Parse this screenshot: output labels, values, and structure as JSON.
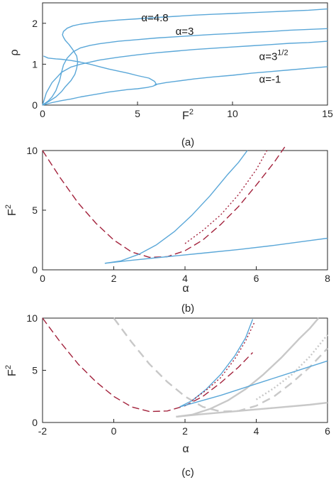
{
  "colors": {
    "blue": "#5aa7d8",
    "red": "#a3223c",
    "gray": "#c8c8c8",
    "axis": "#262626"
  },
  "chart_data": [
    {
      "panel": "(a)",
      "type": "line",
      "xlabel": "F",
      "xlabel_sup": "2",
      "ylabel": "ρ",
      "xlim": [
        0,
        15
      ],
      "ylim": [
        0,
        2.5
      ],
      "xticks": [
        0,
        5,
        10,
        15
      ],
      "yticks": [
        0,
        1,
        2
      ],
      "annotations": [
        {
          "prefix": "α",
          "text": "=4.8",
          "sup": "",
          "x": 5.2,
          "y": 2.05
        },
        {
          "prefix": "α",
          "text": "=3",
          "sup": "",
          "x": 7.0,
          "y": 1.72
        },
        {
          "prefix": "α",
          "text": "=3",
          "sup": "1/2",
          "x": 11.4,
          "y": 1.1
        },
        {
          "prefix": "α",
          "text": "=-1",
          "sup": "",
          "x": 11.4,
          "y": 0.55
        }
      ],
      "series": [
        {
          "style": "solid",
          "color": "blue",
          "x": [
            0,
            0.3,
            0.7,
            1.0,
            1.2,
            1.5,
            1.7,
            1.8,
            1.85,
            1.8,
            1.6,
            1.4,
            1.2,
            1.1,
            1.05,
            1.1,
            1.3,
            1.6,
            2.0,
            2.5,
            3.0,
            3.5,
            4.0,
            5,
            6,
            7,
            8,
            9,
            10,
            11,
            12,
            13,
            14,
            15
          ],
          "y": [
            0,
            0.08,
            0.2,
            0.33,
            0.45,
            0.6,
            0.75,
            0.9,
            1.05,
            1.2,
            1.35,
            1.48,
            1.58,
            1.66,
            1.72,
            1.8,
            1.88,
            1.94,
            1.98,
            2.01,
            2.04,
            2.06,
            2.08,
            2.11,
            2.14,
            2.17,
            2.2,
            2.22,
            2.24,
            2.26,
            2.28,
            2.3,
            2.32,
            2.35
          ]
        },
        {
          "style": "solid",
          "color": "blue",
          "x": [
            0,
            0.3,
            0.5,
            0.7,
            0.9,
            1.0,
            1.1,
            1.3,
            1.6,
            2.0,
            2.5,
            3,
            4,
            5,
            6,
            7,
            8,
            9,
            10,
            11,
            12,
            13,
            14,
            15
          ],
          "y": [
            0,
            0.1,
            0.2,
            0.35,
            0.6,
            0.8,
            0.98,
            1.15,
            1.3,
            1.4,
            1.46,
            1.5,
            1.56,
            1.6,
            1.64,
            1.67,
            1.7,
            1.73,
            1.75,
            1.78,
            1.8,
            1.83,
            1.85,
            1.87
          ]
        },
        {
          "style": "solid",
          "color": "blue",
          "x": [
            0,
            0.2,
            0.5,
            1.0,
            1.5,
            2,
            3,
            4,
            5,
            6,
            7,
            8,
            9,
            10,
            11,
            12,
            13,
            14,
            15
          ],
          "y": [
            0,
            0.3,
            0.55,
            0.8,
            0.93,
            1.0,
            1.1,
            1.17,
            1.23,
            1.28,
            1.32,
            1.36,
            1.39,
            1.42,
            1.45,
            1.48,
            1.51,
            1.53,
            1.56
          ]
        },
        {
          "style": "solid",
          "color": "blue",
          "x": [
            0,
            0.5,
            1.0,
            1.5,
            2.0,
            2.5,
            3.0,
            3.5,
            4.0,
            4.5,
            5.0,
            5.5,
            5.8,
            6.0,
            5.9,
            5.6,
            5.0,
            4.5,
            4.0,
            3.5,
            3.0,
            2.5,
            2.0,
            1.5,
            1.0,
            0.7,
            0.3,
            0.05
          ],
          "y": [
            0,
            0.06,
            0.11,
            0.15,
            0.2,
            0.24,
            0.28,
            0.32,
            0.35,
            0.38,
            0.4,
            0.43,
            0.46,
            0.5,
            0.58,
            0.66,
            0.72,
            0.78,
            0.83,
            0.88,
            0.94,
            1.0,
            1.05,
            1.09,
            1.12,
            1.13,
            1.15,
            1.2
          ]
        },
        {
          "style": "solid",
          "color": "blue",
          "x": [
            5.9,
            6.5,
            7,
            8,
            9,
            10,
            11,
            12,
            13,
            14,
            15
          ],
          "y": [
            0.5,
            0.55,
            0.58,
            0.64,
            0.69,
            0.73,
            0.78,
            0.82,
            0.86,
            0.9,
            0.94
          ]
        }
      ]
    },
    {
      "panel": "(b)",
      "type": "line",
      "xlabel": "α",
      "ylabel": "F",
      "ylabel_sup": "2",
      "xlim": [
        0,
        8
      ],
      "ylim": [
        0,
        10
      ],
      "xticks": [
        0,
        2,
        4,
        6,
        8
      ],
      "yticks": [
        0,
        5,
        10
      ],
      "series": [
        {
          "style": "dashed",
          "color": "red",
          "x": [
            0,
            0.5,
            1,
            1.5,
            2,
            2.5,
            3,
            3.5,
            4,
            4.5,
            5,
            5.5,
            6,
            6.5,
            6.8
          ],
          "y": [
            10,
            7.7,
            5.6,
            3.9,
            2.5,
            1.5,
            1.05,
            1.1,
            1.6,
            2.5,
            3.8,
            5.3,
            7.1,
            9.0,
            10.3
          ]
        },
        {
          "style": "solid",
          "color": "blue",
          "x": [
            1.75,
            2.2,
            2.7,
            3.2,
            3.7,
            4.2,
            4.7,
            5.2,
            5.5,
            5.75
          ],
          "y": [
            0.55,
            0.75,
            1.3,
            2.1,
            3.2,
            4.6,
            6.2,
            8.0,
            9.0,
            10.0
          ]
        },
        {
          "style": "dotted",
          "color": "red",
          "x": [
            4.0,
            4.5,
            5.0,
            5.5,
            6.0,
            6.3
          ],
          "y": [
            2.2,
            3.3,
            4.6,
            6.3,
            8.4,
            10.0
          ]
        },
        {
          "style": "solid",
          "color": "blue",
          "x": [
            1.75,
            2.5,
            3.5,
            4.5,
            5.5,
            6.5,
            7.5,
            8
          ],
          "y": [
            0.55,
            0.8,
            1.1,
            1.4,
            1.7,
            2.05,
            2.45,
            2.65
          ]
        }
      ]
    },
    {
      "panel": "(c)",
      "type": "line",
      "xlabel": "α",
      "ylabel": "F",
      "ylabel_sup": "2",
      "xlim": [
        -2,
        6
      ],
      "ylim": [
        0,
        10
      ],
      "xticks": [
        -2,
        0,
        2,
        4,
        6
      ],
      "yticks": [
        0,
        5,
        10
      ],
      "series": [
        {
          "style": "dashed",
          "color": "gray",
          "x": [
            0,
            0.5,
            1,
            1.5,
            2,
            2.5,
            3,
            3.5,
            4,
            4.5,
            5,
            5.5,
            6
          ],
          "y": [
            10,
            7.7,
            5.6,
            3.9,
            2.5,
            1.5,
            1.05,
            1.1,
            1.6,
            2.5,
            3.8,
            5.3,
            7.1
          ]
        },
        {
          "style": "solid",
          "color": "gray",
          "x": [
            1.75,
            2.2,
            2.7,
            3.2,
            3.7,
            4.2,
            4.7,
            5.2,
            5.5,
            5.75
          ],
          "y": [
            0.55,
            0.75,
            1.3,
            2.1,
            3.2,
            4.6,
            6.2,
            8.0,
            9.0,
            10.0
          ]
        },
        {
          "style": "dotted",
          "color": "gray",
          "x": [
            4.0,
            4.5,
            5.0,
            5.5,
            6.0
          ],
          "y": [
            2.2,
            3.3,
            4.6,
            6.3,
            8.4
          ]
        },
        {
          "style": "solid",
          "color": "gray",
          "x": [
            1.75,
            2.5,
            3.5,
            4.5,
            5.5,
            6
          ],
          "y": [
            0.55,
            0.8,
            1.1,
            1.4,
            1.7,
            1.9
          ]
        },
        {
          "style": "dashed",
          "color": "red",
          "x": [
            -2,
            -1.5,
            -1,
            -0.5,
            0,
            0.5,
            1,
            1.5,
            2,
            2.5,
            3,
            3.5,
            3.9
          ],
          "y": [
            10,
            7.7,
            5.6,
            3.9,
            2.5,
            1.5,
            1.05,
            1.1,
            1.6,
            2.5,
            3.8,
            5.3,
            6.7
          ]
        },
        {
          "style": "solid",
          "color": "blue",
          "x": [
            1.85,
            2.2,
            2.6,
            3.0,
            3.4,
            3.7,
            3.9
          ],
          "y": [
            1.5,
            2.1,
            3.2,
            4.6,
            6.4,
            8.1,
            9.9
          ]
        },
        {
          "style": "dotted",
          "color": "red",
          "x": [
            2.2,
            2.6,
            3.0,
            3.4,
            3.7,
            3.95
          ],
          "y": [
            2.1,
            3.1,
            4.3,
            6.1,
            7.8,
            9.6
          ]
        },
        {
          "style": "solid",
          "color": "blue",
          "x": [
            1.85,
            3,
            4,
            5,
            6
          ],
          "y": [
            1.5,
            2.6,
            3.7,
            4.8,
            5.9
          ]
        }
      ]
    }
  ],
  "captions": [
    "(a)",
    "(b)",
    "(c)"
  ]
}
